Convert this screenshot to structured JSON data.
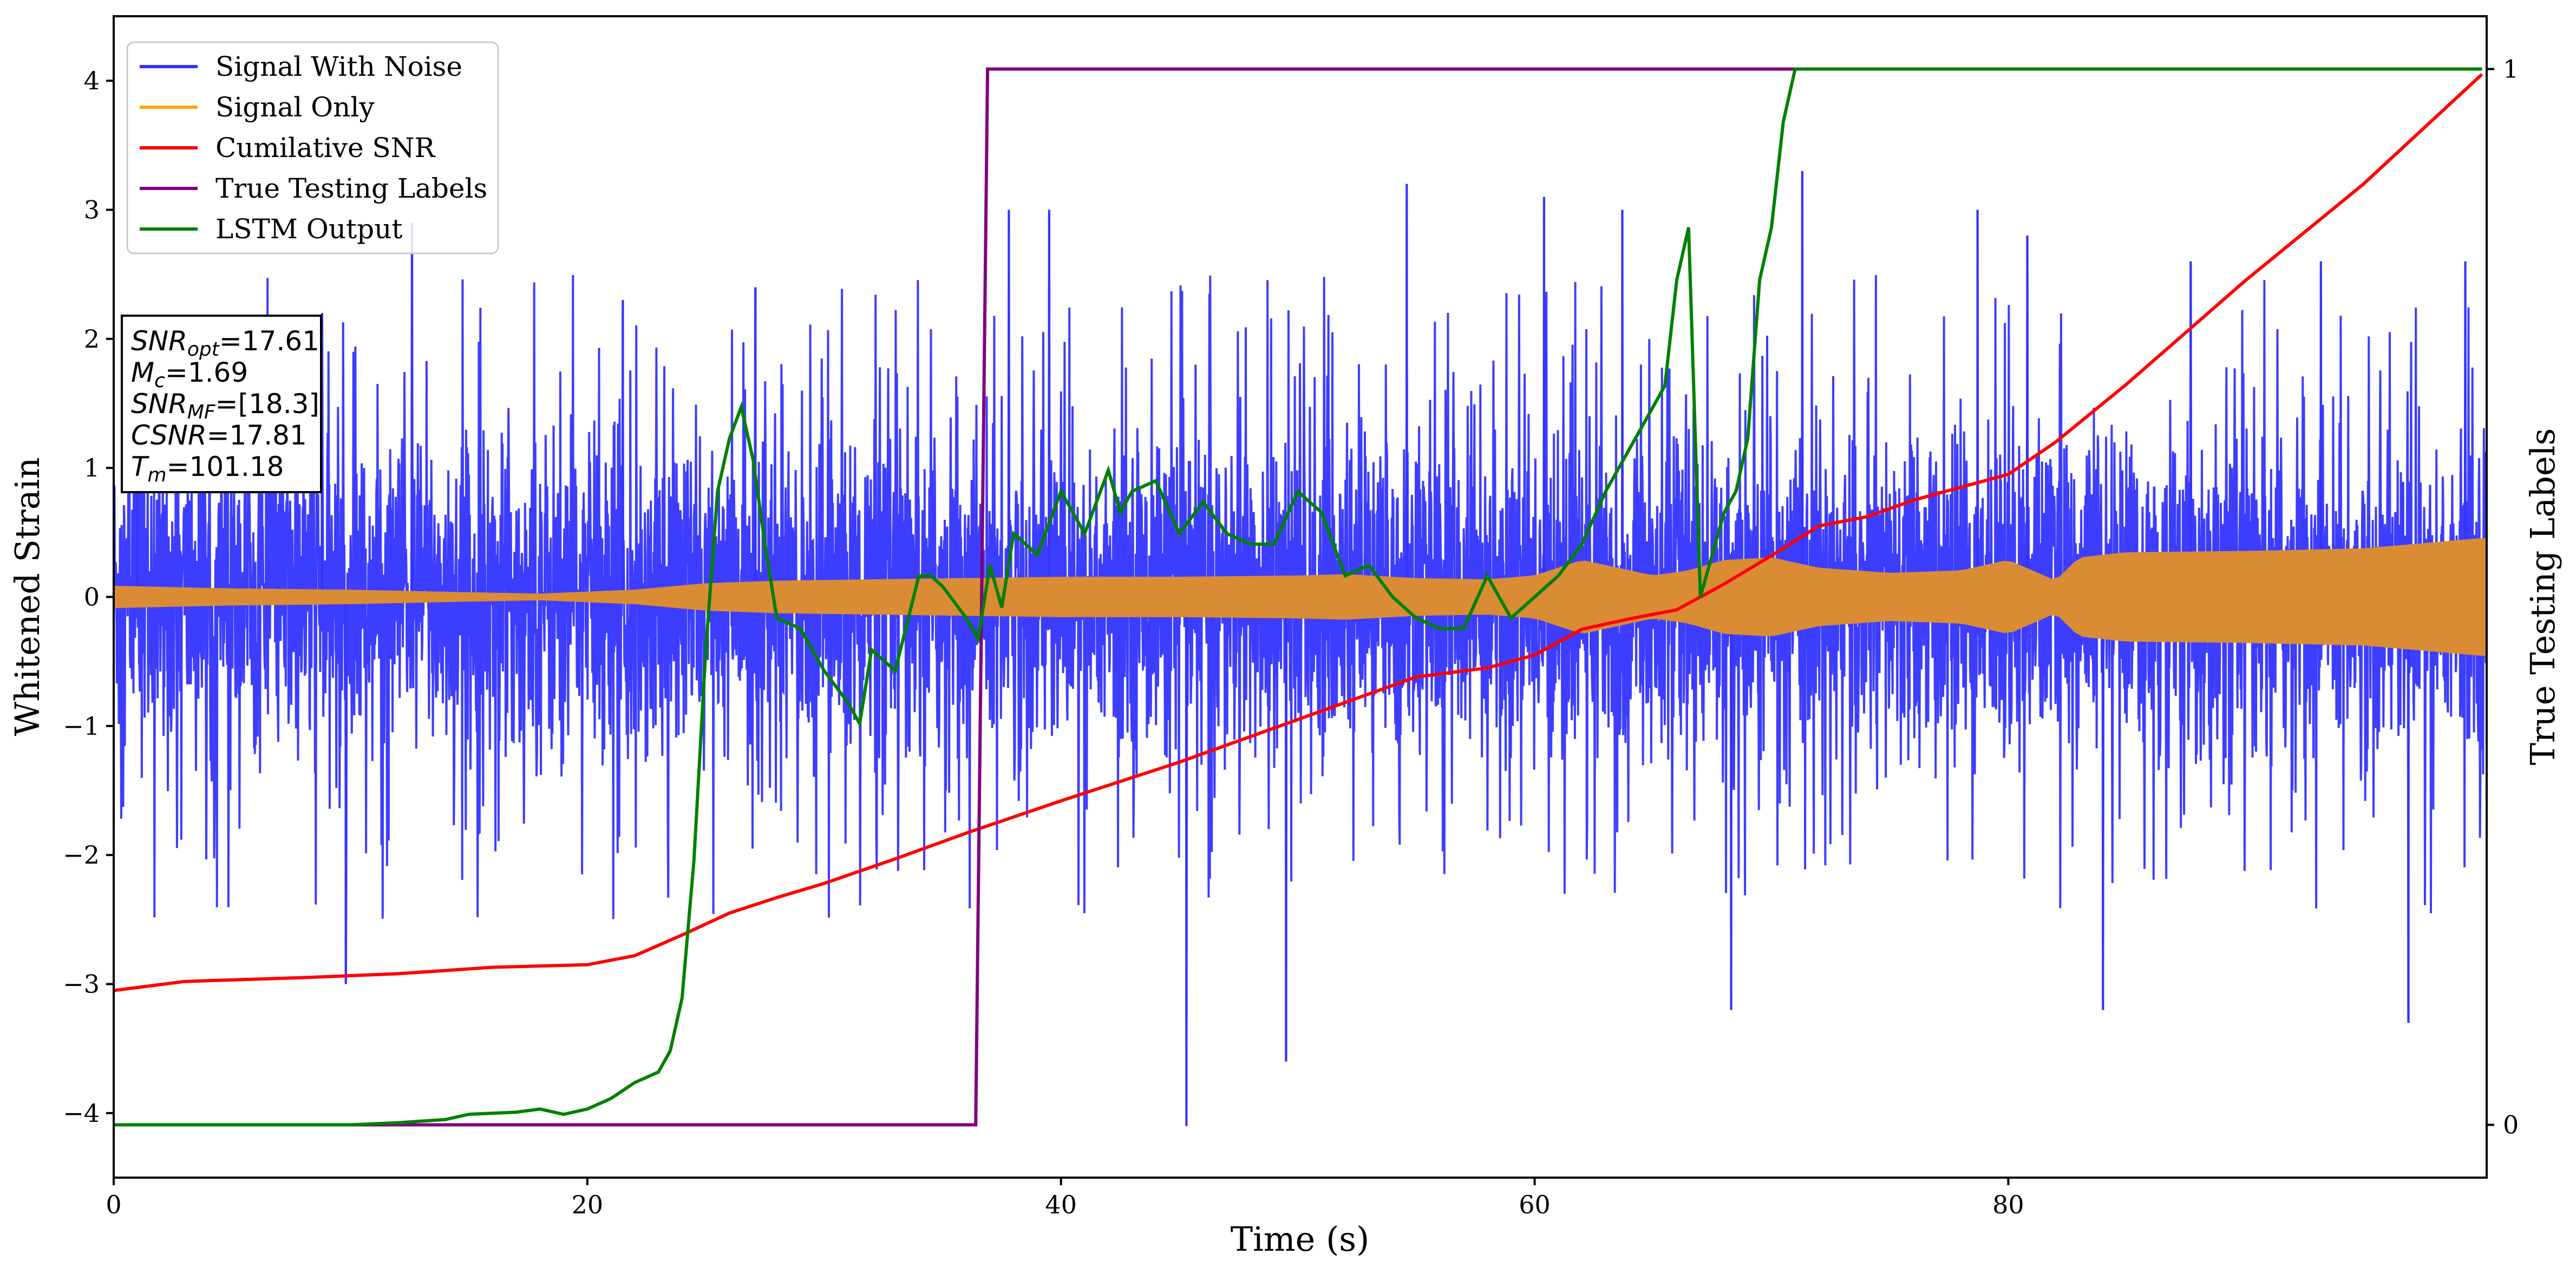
{
  "chart_data": {
    "type": "line",
    "xlabel": "Time (s)",
    "ylabel": "Whitened Strain",
    "y2label": "True Testing Labels",
    "xlim": [
      0,
      100.2
    ],
    "ylim": [
      -4.5,
      4.5
    ],
    "y2lim": [
      -0.05,
      1.05
    ],
    "xticks": [
      "0",
      "20",
      "40",
      "60",
      "80"
    ],
    "xtick_values": [
      0,
      20,
      40,
      60,
      80
    ],
    "yticks": [
      "−4",
      "−3",
      "−2",
      "−1",
      "0",
      "1",
      "2",
      "3",
      "4"
    ],
    "ytick_values": [
      -4,
      -3,
      -2,
      -1,
      0,
      1,
      2,
      3,
      4
    ],
    "y2ticks": [
      "0",
      "1"
    ],
    "y2tick_values": [
      0,
      1
    ],
    "grid": false,
    "legend_position": "top-left",
    "colors": {
      "noise": "#3333ff",
      "signal": "#d98c33",
      "signal_legend": "#ffa500",
      "csnr": "#ff0000",
      "labels": "#800080",
      "lstm": "#008000"
    },
    "legend": [
      {
        "name": "Signal With Noise",
        "color": "#3333ff"
      },
      {
        "name": "Signal Only",
        "color": "#ffa500"
      },
      {
        "name": "Cumilative SNR",
        "color": "#ff0000"
      },
      {
        "name": "True Testing Labels",
        "color": "#800080"
      },
      {
        "name": "LSTM Output",
        "color": "#008000"
      }
    ],
    "series": [
      {
        "name": "Signal With Noise",
        "kind": "noise-band",
        "typical_amplitude": 1.3,
        "peak_values": [
          {
            "x": 1.0,
            "y": 1.8
          },
          {
            "x": 8.8,
            "y": 2.2
          },
          {
            "x": 9.8,
            "y": -3.0
          },
          {
            "x": 12.6,
            "y": 2.9
          },
          {
            "x": 21.5,
            "y": 2.3
          },
          {
            "x": 27.1,
            "y": 2.4
          },
          {
            "x": 37.8,
            "y": 3.0
          },
          {
            "x": 39.5,
            "y": 3.0
          },
          {
            "x": 45.3,
            "y": -4.1
          },
          {
            "x": 49.5,
            "y": -3.6
          },
          {
            "x": 54.6,
            "y": 3.2
          },
          {
            "x": 60.4,
            "y": 3.1
          },
          {
            "x": 63.7,
            "y": 3.0
          },
          {
            "x": 68.3,
            "y": -3.2
          },
          {
            "x": 71.3,
            "y": 3.3
          },
          {
            "x": 78.7,
            "y": 3.0
          },
          {
            "x": 80.8,
            "y": 2.8
          },
          {
            "x": 84.0,
            "y": -3.2
          },
          {
            "x": 87.7,
            "y": 2.6
          },
          {
            "x": 93.2,
            "y": 2.6
          },
          {
            "x": 96.9,
            "y": -3.3
          },
          {
            "x": 99.3,
            "y": 2.6
          }
        ]
      },
      {
        "name": "Signal Only",
        "kind": "envelope",
        "x": [
          0,
          5,
          10,
          15,
          18,
          22,
          25,
          28,
          32,
          36,
          40,
          45,
          50,
          52,
          55,
          58,
          60,
          61,
          62,
          65,
          66.5,
          68,
          70,
          72,
          75,
          78,
          80,
          82,
          83,
          85,
          90,
          95,
          100
        ],
        "amplitude": [
          0.08,
          0.06,
          0.05,
          0.03,
          0.02,
          0.05,
          0.1,
          0.12,
          0.13,
          0.14,
          0.15,
          0.15,
          0.16,
          0.17,
          0.14,
          0.13,
          0.16,
          0.22,
          0.28,
          0.16,
          0.2,
          0.28,
          0.3,
          0.22,
          0.18,
          0.2,
          0.28,
          0.12,
          0.3,
          0.34,
          0.35,
          0.37,
          0.45
        ]
      },
      {
        "name": "Cumilative SNR",
        "x": [
          0,
          3,
          8,
          12,
          16,
          20,
          22,
          24,
          26,
          28,
          30,
          33,
          36,
          40,
          45,
          50,
          55,
          58,
          60,
          62,
          64,
          66,
          68,
          70,
          72,
          74,
          76,
          78,
          80,
          82,
          85,
          90,
          95,
          100
        ],
        "y": [
          -3.05,
          -2.98,
          -2.95,
          -2.92,
          -2.87,
          -2.85,
          -2.78,
          -2.62,
          -2.45,
          -2.33,
          -2.22,
          -2.03,
          -1.83,
          -1.58,
          -1.28,
          -0.95,
          -0.62,
          -0.55,
          -0.45,
          -0.25,
          -0.17,
          -0.1,
          0.1,
          0.32,
          0.55,
          0.62,
          0.75,
          0.85,
          0.95,
          1.2,
          1.65,
          2.45,
          3.2,
          4.05
        ]
      },
      {
        "name": "True Testing Labels",
        "x": [
          0,
          36.4,
          36.9,
          100
        ],
        "y": [
          0,
          0,
          1,
          1
        ]
      },
      {
        "name": "LSTM Output",
        "x": [
          0,
          10,
          12,
          14,
          15,
          17,
          18,
          19,
          20,
          21,
          22,
          23,
          23.5,
          24,
          24.5,
          25,
          25.5,
          26,
          26.5,
          27,
          27.5,
          28,
          29,
          30,
          31,
          31.5,
          32,
          33,
          34,
          34.5,
          35,
          36,
          36.5,
          37,
          37.5,
          38,
          39,
          40,
          41,
          42,
          42.5,
          43,
          44,
          45,
          46,
          47,
          48,
          49,
          50,
          51,
          52,
          53,
          54,
          55,
          56,
          57,
          58,
          59,
          60,
          61,
          62,
          63,
          63.5,
          64,
          64.5,
          65,
          65.5,
          66,
          66.5,
          67,
          68,
          68.5,
          69,
          69.5,
          70,
          70.5,
          71,
          73,
          75,
          80,
          100
        ],
        "y": [
          0,
          0,
          0.002,
          0.005,
          0.01,
          0.012,
          0.015,
          0.01,
          0.015,
          0.025,
          0.04,
          0.05,
          0.07,
          0.12,
          0.25,
          0.45,
          0.6,
          0.65,
          0.68,
          0.63,
          0.55,
          0.48,
          0.47,
          0.43,
          0.4,
          0.38,
          0.45,
          0.43,
          0.52,
          0.52,
          0.51,
          0.48,
          0.46,
          0.53,
          0.49,
          0.56,
          0.54,
          0.6,
          0.56,
          0.62,
          0.58,
          0.6,
          0.61,
          0.56,
          0.59,
          0.56,
          0.55,
          0.55,
          0.6,
          0.58,
          0.52,
          0.53,
          0.5,
          0.48,
          0.47,
          0.47,
          0.52,
          0.48,
          0.5,
          0.52,
          0.55,
          0.6,
          0.62,
          0.64,
          0.66,
          0.68,
          0.7,
          0.8,
          0.85,
          0.5,
          0.58,
          0.6,
          0.65,
          0.8,
          0.85,
          0.95,
          1.0,
          1.0,
          1.0,
          1.0,
          1.0
        ]
      }
    ],
    "annotation_lines": [
      {
        "base": "SNR",
        "sub": "opt",
        "rest": "=17.61"
      },
      {
        "base": "M",
        "sub": "c",
        "rest": "=1.69"
      },
      {
        "base": "SNR",
        "sub": "MF",
        "rest": "=[18.3]"
      },
      {
        "base": "CSNR",
        "sub": "",
        "rest": "=17.81"
      },
      {
        "base": "T",
        "sub": "m",
        "rest": "=101.18"
      }
    ]
  }
}
